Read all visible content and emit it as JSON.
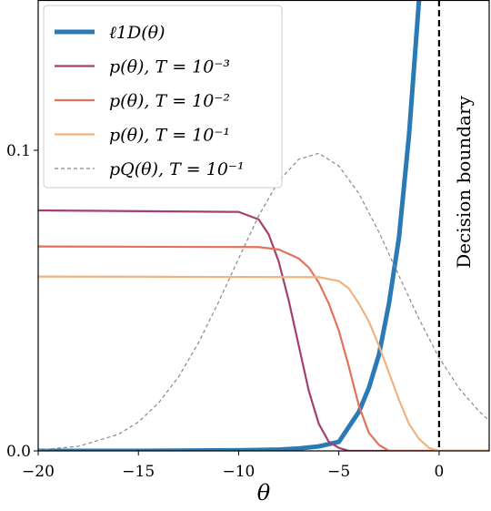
{
  "chart_data": {
    "type": "line",
    "x_label": "θ",
    "xlim": [
      -20,
      2.5
    ],
    "ylim": [
      0,
      0.15
    ],
    "xticks": [
      {
        "value": -20,
        "label": "−20"
      },
      {
        "value": -15,
        "label": "−15"
      },
      {
        "value": -10,
        "label": "−10"
      },
      {
        "value": -5,
        "label": "−5"
      },
      {
        "value": 0,
        "label": "0"
      }
    ],
    "yticks": [
      {
        "value": 0,
        "label": "0.0"
      },
      0.1
    ],
    "legend": "upper left",
    "vline": {
      "x": 0,
      "label": "Decision boundary",
      "color": "#000000"
    },
    "series": [
      {
        "name": "ℓ1D(θ)",
        "color": "#2a7ab5",
        "width": 5,
        "dashed": false,
        "x": [
          -20,
          -15,
          -10,
          -8,
          -7,
          -6,
          -5,
          -4.5,
          -4,
          -3.5,
          -3,
          -2.5,
          -2,
          -1.5,
          -1.2,
          -1
        ],
        "values": [
          0,
          0,
          0.0002,
          0.0004,
          0.0008,
          0.0015,
          0.003,
          0.008,
          0.013,
          0.021,
          0.032,
          0.049,
          0.071,
          0.105,
          0.132,
          0.15
        ]
      },
      {
        "name": "p(θ),  T = 10⁻³",
        "color": "#a43f70",
        "width": 2.2,
        "dashed": false,
        "x": [
          -20,
          -10,
          -9,
          -8.5,
          -8,
          -7.5,
          -7,
          -6.5,
          -6,
          -5.5,
          -5,
          -4.5,
          2.5
        ],
        "values": [
          0.08,
          0.0795,
          0.077,
          0.072,
          0.063,
          0.05,
          0.035,
          0.02,
          0.009,
          0.003,
          0.001,
          0,
          0
        ]
      },
      {
        "name": "p(θ),  T = 10⁻²",
        "color": "#e2725a",
        "width": 2.2,
        "dashed": false,
        "x": [
          -20,
          -9,
          -8,
          -7,
          -6.5,
          -6,
          -5.5,
          -5,
          -4.5,
          -4,
          -3.5,
          -3,
          -2.5,
          2.5
        ],
        "values": [
          0.068,
          0.0678,
          0.067,
          0.064,
          0.061,
          0.056,
          0.049,
          0.04,
          0.028,
          0.015,
          0.006,
          0.002,
          0,
          0
        ]
      },
      {
        "name": "p(θ),  T = 10⁻¹",
        "color": "#f2b27e",
        "width": 2.2,
        "dashed": false,
        "x": [
          -20,
          -6,
          -5,
          -4.5,
          -4,
          -3.5,
          -3,
          -2.5,
          -2,
          -1.5,
          -1,
          -0.5,
          0,
          2.5
        ],
        "values": [
          0.058,
          0.0578,
          0.0565,
          0.054,
          0.049,
          0.043,
          0.035,
          0.026,
          0.017,
          0.009,
          0.004,
          0.001,
          0,
          0
        ]
      },
      {
        "name": "pQ(θ),  T = 10⁻¹",
        "color": "#888888",
        "width": 1.2,
        "dashed": true,
        "x": [
          -20,
          -18,
          -16,
          -15,
          -14,
          -13,
          -12,
          -11,
          -10,
          -9,
          -8,
          -7,
          -6,
          -5,
          -4,
          -3,
          -2,
          -1,
          0,
          1,
          2,
          2.5
        ],
        "values": [
          0.0003,
          0.0015,
          0.0055,
          0.0096,
          0.0159,
          0.0246,
          0.036,
          0.0495,
          0.064,
          0.0782,
          0.0898,
          0.097,
          0.099,
          0.0948,
          0.0856,
          0.0728,
          0.0582,
          0.0439,
          0.031,
          0.0208,
          0.0131,
          0.0101
        ]
      }
    ]
  }
}
